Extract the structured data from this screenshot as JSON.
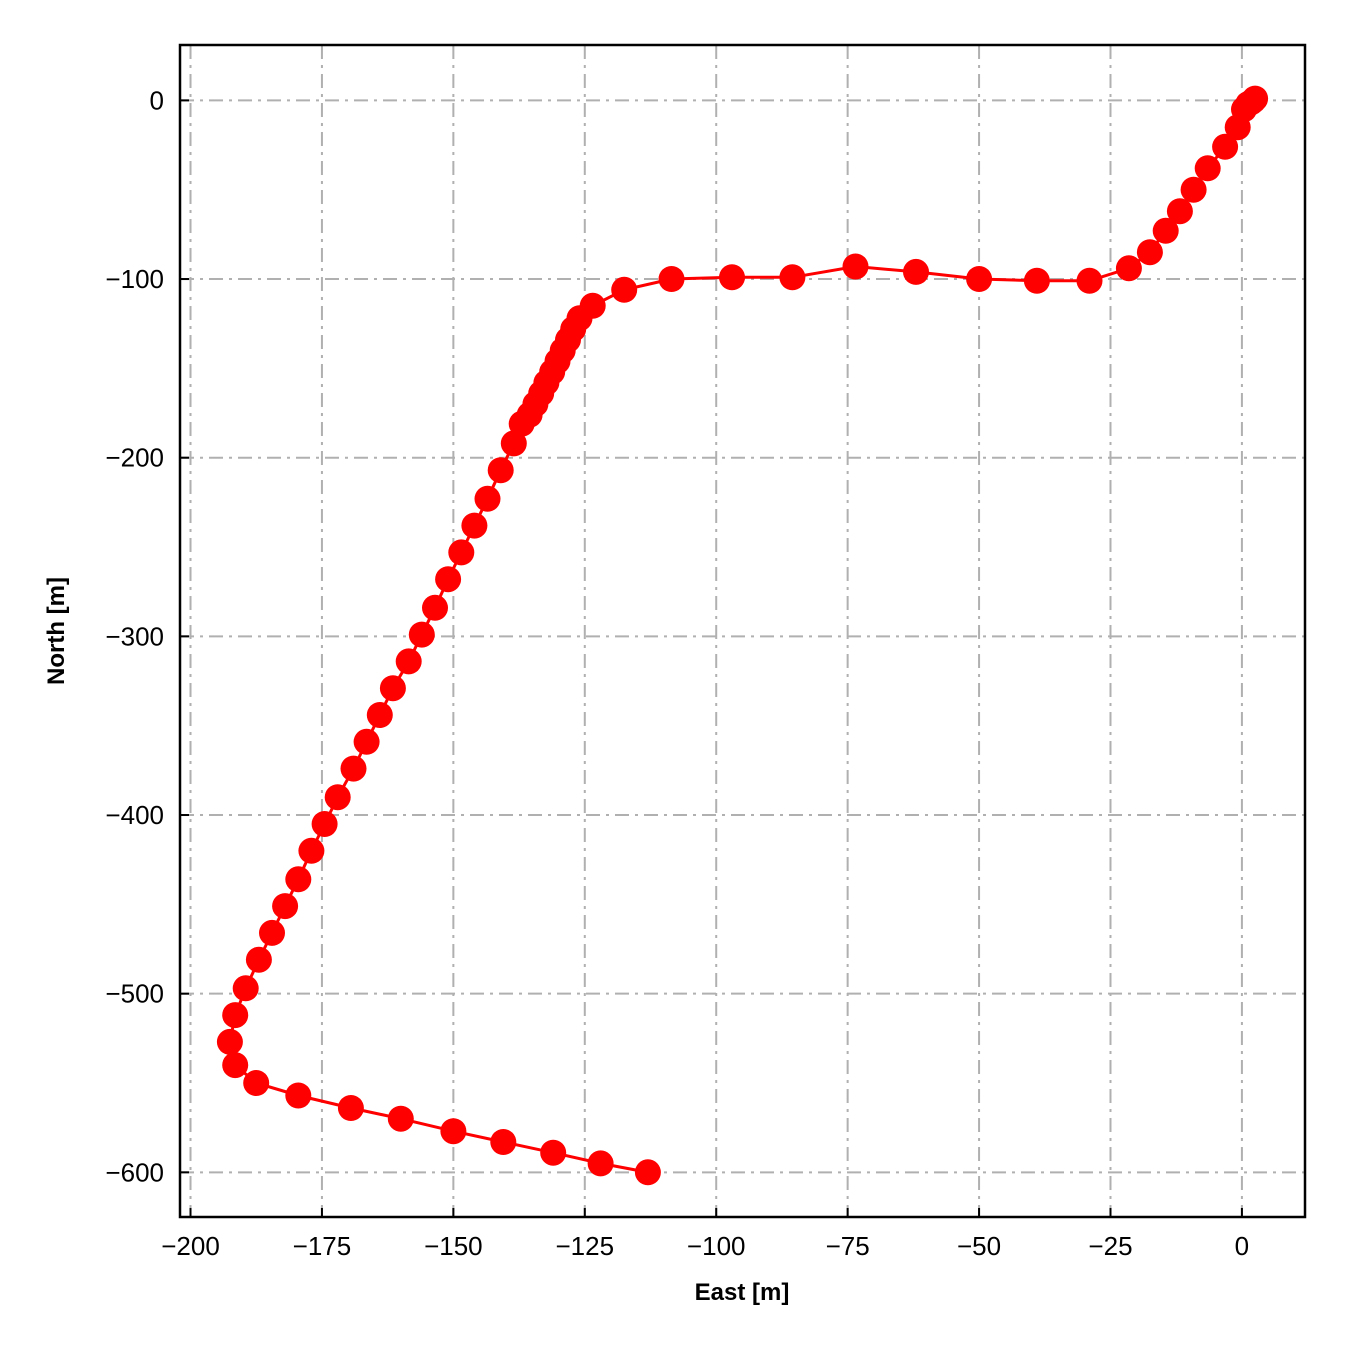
{
  "chart_data": {
    "type": "line",
    "title": "",
    "xlabel": "East [m]",
    "ylabel": "North [m]",
    "xlim": [
      -202,
      12
    ],
    "ylim": [
      -625,
      31
    ],
    "grid": true,
    "x_ticks": [
      -200,
      -175,
      -150,
      -125,
      -100,
      -75,
      -50,
      -25,
      0
    ],
    "y_ticks": [
      0,
      -100,
      -200,
      -300,
      -400,
      -500,
      -600
    ],
    "x_tick_labels": [
      "−200",
      "−175",
      "−150",
      "−125",
      "−100",
      "−75",
      "−50",
      "−25",
      "0"
    ],
    "y_tick_labels": [
      "0",
      "−100",
      "−200",
      "−300",
      "−400",
      "−500",
      "−600"
    ],
    "series": [
      {
        "color": "#ff0000",
        "marker": "circle",
        "x": [
          2.5,
          2.2,
          1.8,
          1.2,
          0.4,
          -0.8,
          -3.2,
          -6.5,
          -9.2,
          -11.8,
          -14.5,
          -17.5,
          -21.5,
          -29,
          -39,
          -50,
          -62,
          -73.5,
          -85.5,
          -97,
          -108.5,
          -117.5,
          -123.5,
          -126,
          -127.2,
          -128.2,
          -129.2,
          -130.2,
          -131.2,
          -132.3,
          -133.3,
          -134.4,
          -135.5,
          -137,
          -138.5,
          -141,
          -143.5,
          -146,
          -148.5,
          -151,
          -153.5,
          -156,
          -158.5,
          -161.5,
          -164,
          -166.5,
          -169,
          -172,
          -174.5,
          -177,
          -179.5,
          -182,
          -184.5,
          -187,
          -189.5,
          -191.5,
          -192.5,
          -191.5,
          -187.5,
          -179.5,
          -169.5,
          -160,
          -150,
          -140.5,
          -131,
          -122,
          -113
        ],
        "y": [
          1,
          0,
          -1,
          -2,
          -5,
          -15,
          -26,
          -38,
          -50,
          -62,
          -73,
          -85,
          -94,
          -101,
          -101,
          -100,
          -96,
          -93,
          -99,
          -99,
          -100,
          -106,
          -115,
          -122,
          -128,
          -134,
          -140,
          -146,
          -152,
          -158,
          -164,
          -170,
          -176,
          -181,
          -192,
          -207,
          -223,
          -238,
          -253,
          -268,
          -284,
          -299,
          -314,
          -329,
          -344,
          -359,
          -374,
          -390,
          -405,
          -420,
          -436,
          -451,
          -466,
          -481,
          -497,
          -512,
          -527,
          -540,
          -550,
          -557,
          -564,
          -570,
          -577,
          -583,
          -589,
          -595,
          -600
        ]
      }
    ]
  }
}
